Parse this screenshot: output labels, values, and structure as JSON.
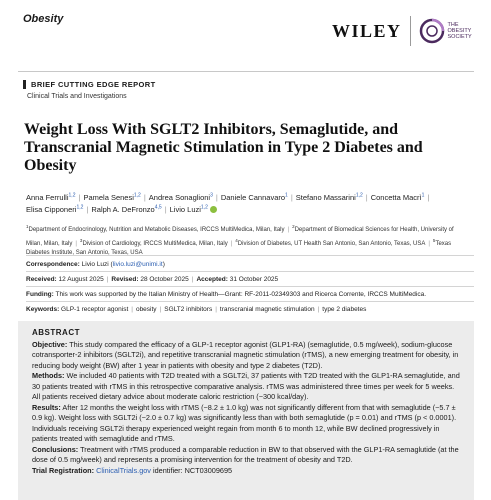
{
  "header": {
    "journal": "Obesity",
    "publisher": "WILEY",
    "society_line1": "THE",
    "society_line2": "OBESITY",
    "society_line3": "SOCIETY",
    "society_color": "#4b2a5e"
  },
  "article": {
    "type": "BRIEF CUTTING EDGE REPORT",
    "section": "Clinical Trials and Investigations",
    "title": "Weight Loss With SGLT2 Inhibitors, Semaglutide, and Transcranial Magnetic Stimulation in Type 2 Diabetes and Obesity"
  },
  "authors": [
    {
      "name": "Anna Ferrulli",
      "sup": "1,2"
    },
    {
      "name": "Pamela Senesi",
      "sup": "1,2"
    },
    {
      "name": "Andrea Sonaglioni",
      "sup": "3"
    },
    {
      "name": "Daniele Cannavaro",
      "sup": "1"
    },
    {
      "name": "Stefano Massarini",
      "sup": "1,2"
    },
    {
      "name": "Concetta Macrì",
      "sup": "1"
    },
    {
      "name": "Elisa Cipponeri",
      "sup": "1,2"
    },
    {
      "name": "Ralph A. DeFronzo",
      "sup": "4,5"
    },
    {
      "name": "Livio Luzi",
      "sup": "1,2"
    }
  ],
  "affiliations": [
    {
      "sup": "1",
      "text": "Department of Endocrinology, Nutrition and Metabolic Diseases, IRCCS MultiMedica, Milan, Italy"
    },
    {
      "sup": "2",
      "text": "Department of Biomedical Sciences for Health, University of Milan, Milan, Italy"
    },
    {
      "sup": "3",
      "text": "Division of Cardiology, IRCCS MultiMedica, Milan, Italy"
    },
    {
      "sup": "4",
      "text": "Division of Diabetes, UT Health San Antonio, San Antonio, Texas, USA"
    },
    {
      "sup": "5",
      "text": "Texas Diabetes Institute, San Antonio, Texas, USA"
    }
  ],
  "meta": {
    "correspondence_label": "Correspondence:",
    "correspondence_name": "Livio Luzi",
    "correspondence_email": "livio.luzi@unimi.it",
    "received_label": "Received:",
    "received": "12 August 2025",
    "revised_label": "Revised:",
    "revised": "28 October 2025",
    "accepted_label": "Accepted:",
    "accepted": "31 October 2025",
    "funding_label": "Funding:",
    "funding": "This work was supported by the Italian Ministry of Health—Grant: RF-2011-02349303 and Ricerca Corrente, IRCCS MultiMedica.",
    "keywords_label": "Keywords:",
    "keywords": [
      "GLP-1 receptor agonist",
      "obesity",
      "SGLT2 inhibitors",
      "transcranial magnetic stimulation",
      "type 2 diabetes"
    ]
  },
  "abstract": {
    "heading": "ABSTRACT",
    "objective_label": "Objective:",
    "objective": "This study compared the efficacy of a GLP-1 receptor agonist (GLP1-RA) (semaglutide, 0.5 mg/week), sodium-glucose cotransporter-2 inhibitors (SGLT2i), and repetitive transcranial magnetic stimulation (rTMS), a new emerging treatment for obesity, in reducing body weight (BW) after 1 year in patients with obesity and type 2 diabetes (T2D).",
    "methods_label": "Methods:",
    "methods": "We included 40 patients with T2D treated with a SGLT2i, 37 patients with T2D treated with the GLP1-RA semaglutide, and 30 patients treated with rTMS in this retrospective comparative analysis. rTMS was administered three times per week for 5 weeks. All patients received dietary advice about moderate caloric restriction (−300 kcal/day).",
    "results_label": "Results:",
    "results": "After 12 months the weight loss with rTMS (−8.2 ± 1.0 kg) was not significantly different from that with semaglutide (−5.7 ± 0.9 kg). Weight loss with SGLT2i (−2.0 ± 0.7 kg) was significantly less than with both semaglutide (p = 0.01) and rTMS (p < 0.0001). Individuals receiving SGLT2i therapy experienced weight regain from month 6 to month 12, while BW declined progressively in patients treated with semaglutide and rTMS.",
    "conclusions_label": "Conclusions:",
    "conclusions": "Treatment with rTMS produced a comparable reduction in BW to that observed with the GLP1-RA semaglutide (at the dose of 0.5 mg/week) and represents a promising intervention for the treatment of obesity and T2D.",
    "registration_label": "Trial Registration:",
    "registration_link": "ClinicalTrials.gov",
    "registration_text": " identifier: NCT03009695"
  }
}
